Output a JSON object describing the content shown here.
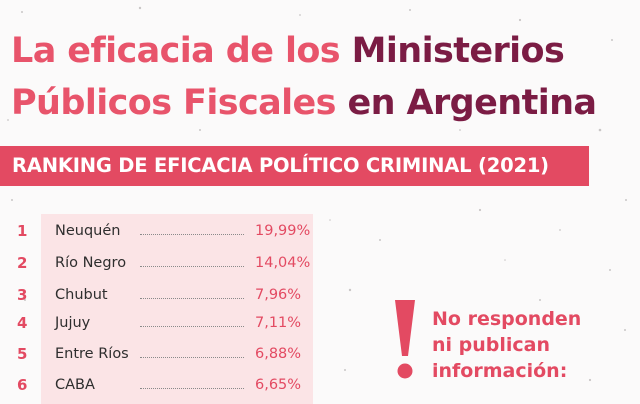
{
  "title": {
    "line1_part1": "La eficacia de los ",
    "line1_part2": "Ministerios",
    "line2_part1": "Públicos Fiscales ",
    "line2_part2": "en Argentina"
  },
  "banner": "RANKING DE EFICACIA POLÍTICO CRIMINAL (2021)",
  "ranking": [
    {
      "rank": "1",
      "name": "Neuquén",
      "value": "19,99%"
    },
    {
      "rank": "2",
      "name": "Río Negro",
      "value": "14,04%"
    },
    {
      "rank": "3",
      "name": "Chubut",
      "value": "7,96%"
    },
    {
      "rank": "4",
      "name": "Jujuy",
      "value": "7,11%"
    },
    {
      "rank": "5",
      "name": "Entre Ríos",
      "value": "6,88%"
    },
    {
      "rank": "6",
      "name": "CABA",
      "value": "6,65%"
    }
  ],
  "notice": {
    "line1": "No responden",
    "line2": "ni publican",
    "line3": "información:"
  },
  "colors": {
    "pink": "#e8546b",
    "dark_magenta": "#7b1c44",
    "banner": "#e34a62",
    "table_bg": "#fbe4e6"
  }
}
